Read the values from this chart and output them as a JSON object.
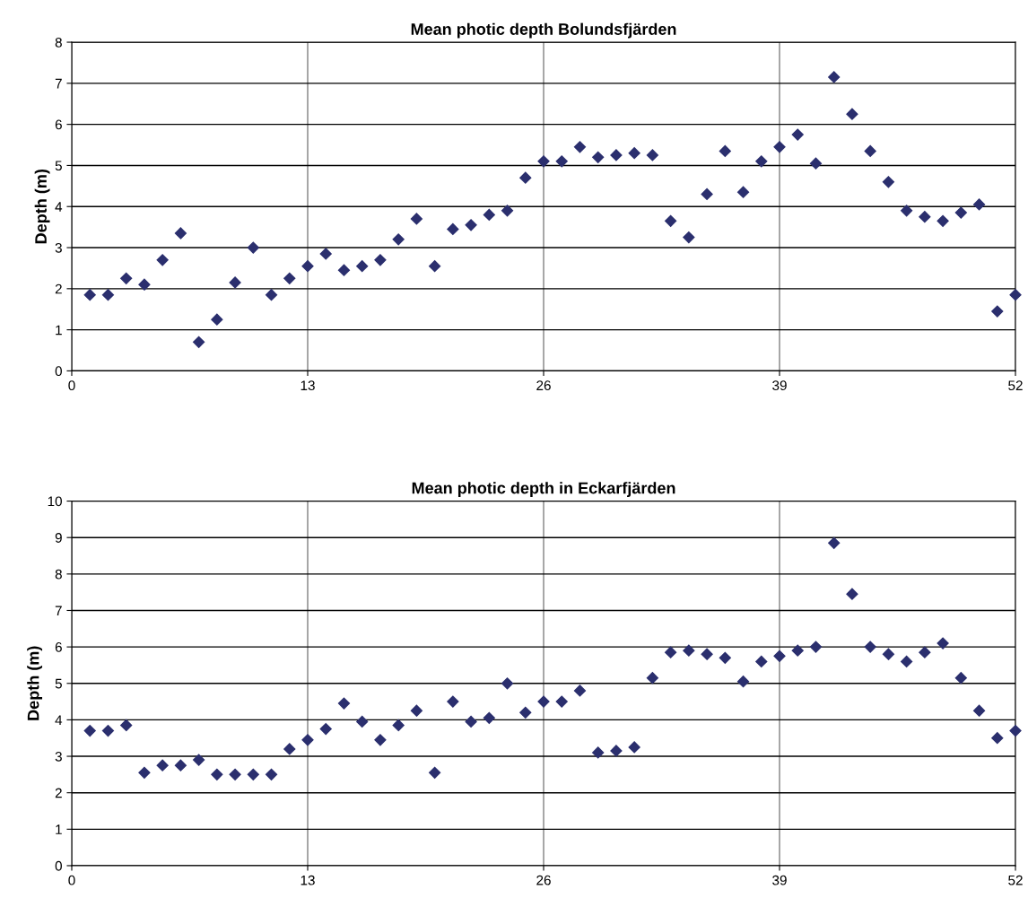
{
  "chart_data": [
    {
      "type": "scatter",
      "title": "Mean photic depth Bolundsfjärden",
      "ylabel": "Depth (m)",
      "marker": "diamond",
      "grid": true,
      "xlim": [
        0,
        52
      ],
      "xticks": [
        0,
        13,
        26,
        39,
        52
      ],
      "ylim": [
        0,
        8
      ],
      "yticks": [
        0,
        1,
        2,
        3,
        4,
        5,
        6,
        7,
        8
      ],
      "x": [
        1,
        2,
        3,
        4,
        5,
        6,
        7,
        8,
        9,
        10,
        11,
        12,
        13,
        14,
        15,
        16,
        17,
        18,
        19,
        20,
        21,
        22,
        23,
        24,
        25,
        26,
        27,
        28,
        29,
        30,
        31,
        32,
        33,
        34,
        35,
        36,
        37,
        38,
        39,
        40,
        41,
        42,
        43,
        44,
        45,
        46,
        47,
        48,
        49,
        50,
        51,
        52
      ],
      "series": [
        {
          "color": "#2b2f6e",
          "values": [
            1.85,
            1.85,
            2.25,
            2.1,
            2.7,
            3.35,
            0.7,
            1.25,
            2.15,
            3.0,
            1.85,
            2.25,
            2.55,
            2.85,
            2.45,
            2.55,
            2.7,
            3.2,
            3.7,
            2.55,
            3.45,
            3.55,
            3.8,
            3.9,
            4.7,
            5.1,
            5.1,
            5.45,
            5.2,
            5.25,
            5.3,
            5.25,
            3.65,
            3.25,
            4.3,
            5.35,
            4.35,
            5.1,
            5.45,
            5.75,
            5.05,
            7.15,
            6.25,
            5.35,
            4.6,
            3.9,
            3.75,
            3.65,
            3.85,
            4.05,
            1.45,
            1.85
          ]
        }
      ]
    },
    {
      "type": "scatter",
      "title": "Mean photic depth in Eckarfjärden",
      "ylabel": "Depth (m)",
      "marker": "diamond",
      "grid": true,
      "xlim": [
        0,
        52
      ],
      "xticks": [
        0,
        13,
        26,
        39,
        52
      ],
      "ylim": [
        0,
        10
      ],
      "yticks": [
        0,
        1,
        2,
        3,
        4,
        5,
        6,
        7,
        8,
        9,
        10
      ],
      "x": [
        1,
        2,
        3,
        4,
        5,
        6,
        7,
        8,
        9,
        10,
        11,
        12,
        13,
        14,
        15,
        16,
        17,
        18,
        19,
        20,
        21,
        22,
        23,
        24,
        25,
        26,
        27,
        28,
        29,
        30,
        31,
        32,
        33,
        34,
        35,
        36,
        37,
        38,
        39,
        40,
        41,
        42,
        43,
        44,
        45,
        46,
        47,
        48,
        49,
        50,
        51,
        52
      ],
      "series": [
        {
          "color": "#2b2f6e",
          "values": [
            3.7,
            3.7,
            3.85,
            2.55,
            2.75,
            2.75,
            2.9,
            2.5,
            2.5,
            2.5,
            2.5,
            3.2,
            3.45,
            3.75,
            4.45,
            3.95,
            3.45,
            3.85,
            4.25,
            2.55,
            4.5,
            3.95,
            4.05,
            5.0,
            4.2,
            4.5,
            4.5,
            4.8,
            3.1,
            3.15,
            3.25,
            5.15,
            5.85,
            5.9,
            5.8,
            5.7,
            5.05,
            5.6,
            5.75,
            5.9,
            6.0,
            8.85,
            7.45,
            6.0,
            5.8,
            5.6,
            5.85,
            6.1,
            5.15,
            4.25,
            3.5,
            3.7
          ]
        }
      ]
    }
  ]
}
